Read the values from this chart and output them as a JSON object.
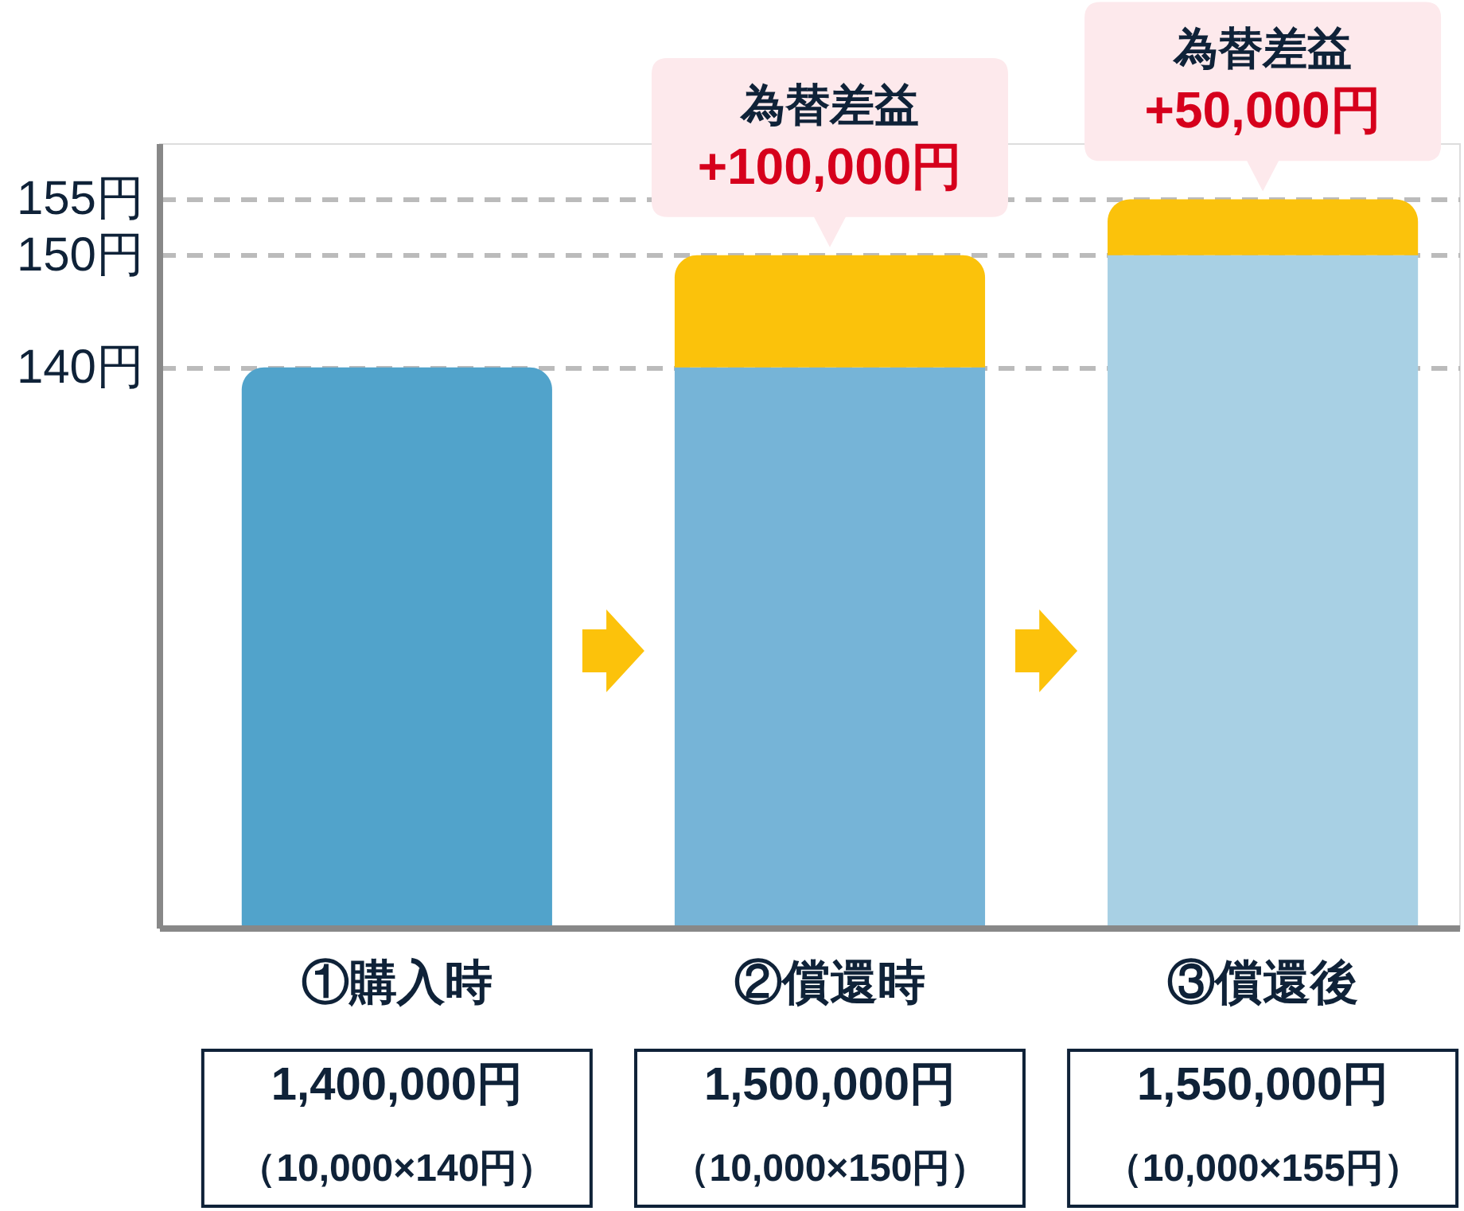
{
  "chart_data": {
    "type": "bar",
    "categories": [
      "①購入時",
      "②償還時",
      "③償還後"
    ],
    "stacked": true,
    "series": [
      {
        "colors": [
          "#51a3cb",
          "#76b4d7",
          "#a8d0e4"
        ],
        "values": [
          140,
          140,
          150
        ]
      },
      {
        "color": "#fbc20b",
        "values": [
          null,
          10,
          5
        ],
        "base": [
          null,
          140,
          150
        ]
      }
    ],
    "ylim": [
      90,
      160
    ],
    "yticks": [
      {
        "value": 140,
        "label": "140円"
      },
      {
        "value": 150,
        "label": "150円"
      },
      {
        "value": 155,
        "label": "155円"
      }
    ],
    "grid": "y",
    "annotations": [
      {
        "text": "為替差益",
        "x": "②償還時",
        "y": 150
      },
      {
        "text": "+100,000円",
        "x": "②償還時",
        "y": 150
      },
      {
        "text": "為替差益",
        "x": "③償還後",
        "y": 155
      },
      {
        "text": "+50,000円",
        "x": "③償還後",
        "y": 155
      },
      "1,400,000円",
      "（10,000×140円）",
      "1,500,000円",
      "（10,000×150円）",
      "1,550,000円",
      "（10,000×155円）"
    ]
  }
}
